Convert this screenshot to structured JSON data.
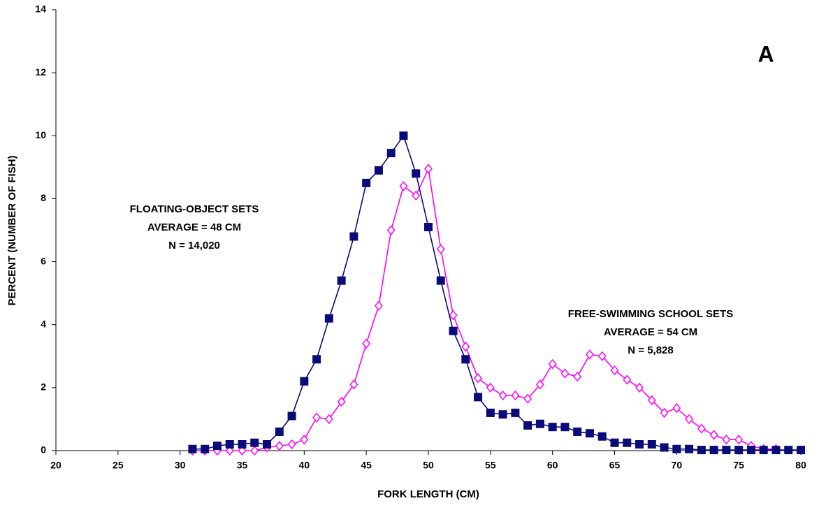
{
  "chart_data": {
    "type": "line",
    "panel_label": "A",
    "xlabel": "FORK LENGTH (CM)",
    "ylabel": "PERCENT (NUMBER OF FISH)",
    "x": [
      31,
      32,
      33,
      34,
      35,
      36,
      37,
      38,
      39,
      40,
      41,
      42,
      43,
      44,
      45,
      46,
      47,
      48,
      49,
      50,
      51,
      52,
      53,
      54,
      55,
      56,
      57,
      58,
      59,
      60,
      61,
      62,
      63,
      64,
      65,
      66,
      67,
      68,
      69,
      70,
      71,
      72,
      73,
      74,
      75,
      76,
      77,
      78,
      79,
      80
    ],
    "series": [
      {
        "color": "#0a0a78",
        "marker": "square",
        "values": [
          0.05,
          0.05,
          0.15,
          0.2,
          0.2,
          0.25,
          0.2,
          0.6,
          1.1,
          2.2,
          2.9,
          4.2,
          5.4,
          6.8,
          8.5,
          8.9,
          9.45,
          10.0,
          8.8,
          7.1,
          5.4,
          3.8,
          2.9,
          1.7,
          1.2,
          1.15,
          1.2,
          0.8,
          0.85,
          0.75,
          0.75,
          0.6,
          0.55,
          0.45,
          0.25,
          0.25,
          0.2,
          0.2,
          0.1,
          0.05,
          0.05,
          0.02,
          0.02,
          0.02,
          0.02,
          0.02,
          0.02,
          0.02,
          0.02,
          0.02
        ]
      },
      {
        "color": "#ff00ff",
        "marker": "diamond",
        "values": [
          0,
          0,
          0,
          0,
          0,
          0,
          0.1,
          0.15,
          0.2,
          0.35,
          1.05,
          1.0,
          1.55,
          2.1,
          3.4,
          4.6,
          7.0,
          8.4,
          8.1,
          8.95,
          6.4,
          4.3,
          3.3,
          2.3,
          2.0,
          1.75,
          1.75,
          1.65,
          2.1,
          2.75,
          2.45,
          2.35,
          3.05,
          3.0,
          2.55,
          2.25,
          2.0,
          1.6,
          1.2,
          1.35,
          1.0,
          0.7,
          0.5,
          0.35,
          0.35,
          0.15,
          0.05,
          0.05,
          null,
          null
        ]
      }
    ],
    "annotations": [
      [
        "FLOATING-OBJECT SETS",
        "AVERAGE = 48 CM",
        "N = 14,020"
      ],
      [
        "FREE-SWIMMING SCHOOL SETS",
        "AVERAGE = 54 CM",
        "N = 5,828"
      ]
    ],
    "xlim": [
      20,
      80
    ],
    "xticks": [
      20,
      25,
      30,
      35,
      40,
      45,
      50,
      55,
      60,
      65,
      70,
      75,
      80
    ],
    "ylim": [
      0,
      14
    ],
    "yticks": [
      0,
      2,
      4,
      6,
      8,
      10,
      12,
      14
    ],
    "grid": false
  }
}
